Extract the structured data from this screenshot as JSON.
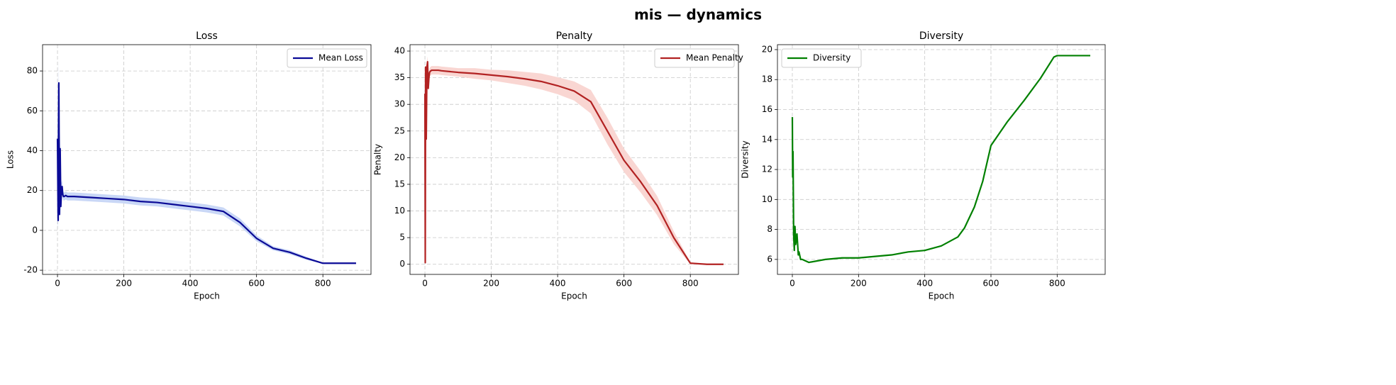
{
  "title": "mis — dynamics",
  "chart_data": [
    {
      "type": "line",
      "title": "Loss",
      "xlabel": "Epoch",
      "ylabel": "Loss",
      "x": [
        0,
        2,
        4,
        6,
        8,
        10,
        12,
        14,
        16,
        18,
        20,
        25,
        30,
        40,
        50,
        100,
        150,
        200,
        250,
        300,
        350,
        400,
        450,
        500,
        550,
        600,
        650,
        700,
        750,
        800,
        850,
        900
      ],
      "series": [
        {
          "name": "Mean Loss",
          "color": "#0a0a96",
          "band_color": "#c9d7f6",
          "values": [
            46,
            5,
            74,
            8,
            41,
            12,
            20,
            22,
            18,
            17,
            17,
            17.5,
            17,
            17,
            17,
            16.5,
            16,
            15.5,
            14.5,
            14,
            13,
            12,
            11,
            9.5,
            4,
            -4,
            -9,
            -11,
            -14,
            -16.5,
            -16.5,
            -16.5
          ],
          "std": [
            40,
            4,
            12,
            5,
            8,
            5,
            4,
            3,
            2,
            2,
            2,
            2,
            2,
            2,
            2,
            2,
            2,
            2,
            2,
            2,
            2,
            2,
            2,
            2,
            2,
            1.5,
            1,
            1,
            0.8,
            0.2,
            0.1,
            0.1
          ]
        }
      ],
      "xlim": [
        -45,
        945
      ],
      "ylim": [
        -22.1,
        93.2
      ],
      "xticks": [
        0,
        200,
        400,
        600,
        800
      ],
      "yticks": [
        -20,
        0,
        20,
        40,
        60,
        80
      ],
      "grid": true,
      "legend": "upper right"
    },
    {
      "type": "line",
      "title": "Penalty",
      "xlabel": "Epoch",
      "ylabel": "Penalty",
      "x": [
        0,
        1,
        2,
        4,
        6,
        8,
        10,
        12,
        14,
        16,
        18,
        20,
        25,
        30,
        40,
        50,
        100,
        150,
        200,
        250,
        300,
        350,
        400,
        450,
        500,
        550,
        600,
        650,
        700,
        750,
        800,
        850,
        900
      ],
      "series": [
        {
          "name": "Mean Penalty",
          "color": "#b22222",
          "band_color": "#f9d6d2",
          "values": [
            32,
            0.3,
            37,
            23.5,
            37,
            38,
            33,
            35,
            36,
            36.2,
            36.3,
            36.4,
            36.4,
            36.4,
            36.4,
            36.3,
            36,
            35.8,
            35.5,
            35.2,
            34.8,
            34.3,
            33.5,
            32.5,
            30.5,
            25,
            19.5,
            15.5,
            11,
            5,
            0.2,
            0,
            0
          ],
          "std": [
            1,
            0.3,
            1,
            2,
            1,
            1,
            1,
            1,
            0.8,
            0.8,
            0.8,
            0.8,
            0.8,
            0.8,
            0.8,
            0.8,
            0.8,
            1,
            1,
            1.2,
            1.3,
            1.5,
            1.6,
            1.8,
            2.2,
            2.5,
            2.2,
            2,
            1.8,
            1.2,
            0.2,
            0,
            0
          ]
        }
      ],
      "xlim": [
        -45,
        945
      ],
      "ylim": [
        -1.9,
        41.2
      ],
      "xticks": [
        0,
        200,
        400,
        600,
        800
      ],
      "yticks": [
        0,
        5,
        10,
        15,
        20,
        25,
        30,
        35,
        40
      ],
      "grid": true,
      "legend": "upper right"
    },
    {
      "type": "line",
      "title": "Diversity",
      "xlabel": "Epoch",
      "ylabel": "Diversity",
      "x": [
        0,
        1,
        2,
        4,
        6,
        8,
        10,
        14,
        18,
        20,
        25,
        30,
        40,
        50,
        100,
        150,
        200,
        250,
        300,
        350,
        400,
        450,
        500,
        520,
        550,
        575,
        600,
        650,
        700,
        750,
        790,
        800,
        850,
        900
      ],
      "series": [
        {
          "name": "Diversity",
          "color": "#008000",
          "values": [
            15.5,
            11.5,
            13.2,
            7.6,
            6.6,
            8.2,
            7,
            7.7,
            6.3,
            6.5,
            6,
            6,
            5.9,
            5.8,
            6,
            6.1,
            6.1,
            6.2,
            6.3,
            6.5,
            6.6,
            6.9,
            7.5,
            8.1,
            9.5,
            11.2,
            13.6,
            15.2,
            16.6,
            18.1,
            19.5,
            19.6,
            19.6,
            19.6
          ]
        }
      ],
      "xlim": [
        -45,
        945
      ],
      "ylim": [
        5.0,
        20.33
      ],
      "xticks": [
        0,
        200,
        400,
        600,
        800
      ],
      "yticks": [
        6,
        8,
        10,
        12,
        14,
        16,
        18,
        20
      ],
      "grid": true,
      "legend": "upper left"
    }
  ]
}
